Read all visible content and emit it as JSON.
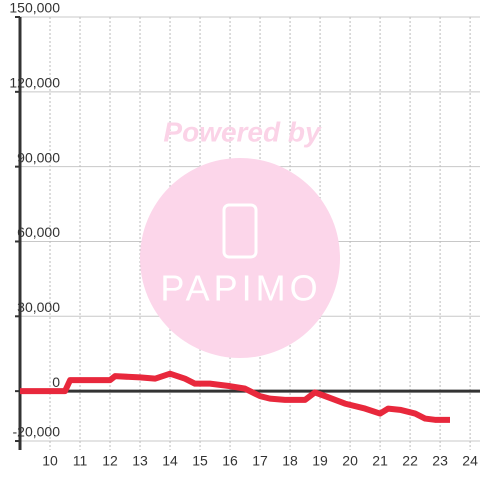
{
  "chart_data": {
    "type": "line",
    "watermark": {
      "title": "Powered by",
      "logo": "PAPIMO"
    },
    "x": [
      9,
      10.5,
      10.67,
      12,
      12.17,
      13,
      13.5,
      14,
      14.5,
      14.83,
      15.33,
      16,
      16.5,
      17,
      17.33,
      17.83,
      18.5,
      18.83,
      19.17,
      19.83,
      20.5,
      21,
      21.27,
      21.67,
      22.17,
      22.5,
      22.83,
      23.33
    ],
    "series": [
      {
        "color": "#e8283c",
        "values": [
          0,
          0,
          4400,
          4400,
          6000,
          5500,
          5000,
          7000,
          5000,
          3000,
          3000,
          2000,
          1000,
          -2000,
          -3000,
          -3500,
          -3500,
          -500,
          -2000,
          -5000,
          -7000,
          -9000,
          -7000,
          -7500,
          -9000,
          -11000,
          -11500,
          -11500
        ]
      }
    ],
    "xlim": [
      9,
      24.33
    ],
    "xticks": [
      10,
      11,
      12,
      13,
      14,
      15,
      16,
      17,
      18,
      19,
      20,
      21,
      22,
      23,
      24
    ],
    "ylim": [
      -23600,
      150000
    ],
    "yticks": [
      {
        "value": -20000,
        "label": "-20,000"
      },
      0,
      {
        "value": 30000,
        "label": "30,000"
      },
      {
        "value": 60000,
        "label": "60,000"
      },
      {
        "value": 90000,
        "label": "90,000"
      },
      {
        "value": 120000,
        "label": "120,000"
      },
      {
        "value": 150000,
        "label": "150,000"
      }
    ],
    "grid": true
  }
}
